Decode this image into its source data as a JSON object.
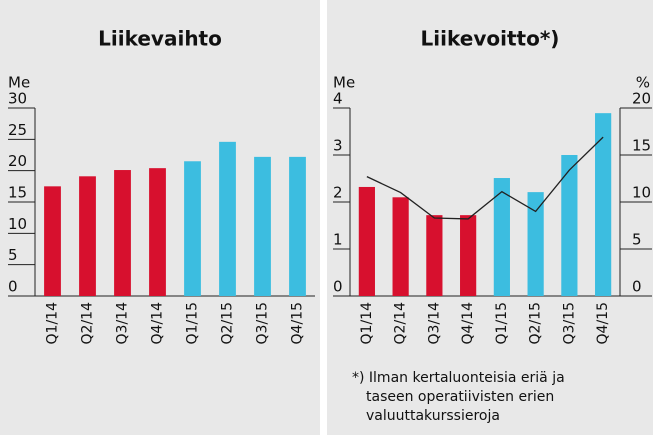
{
  "chart_data": [
    {
      "type": "bar",
      "title": "Liikevaihto",
      "y_label": "Me",
      "categories": [
        "Q1/14",
        "Q2/14",
        "Q3/14",
        "Q4/14",
        "Q1/15",
        "Q2/15",
        "Q3/15",
        "Q4/15"
      ],
      "series": [
        {
          "values": [
            17.5,
            19.1,
            20.1,
            20.4,
            21.5,
            24.6,
            22.2,
            22.2
          ],
          "colors": [
            "#d7102e",
            "#d7102e",
            "#d7102e",
            "#d7102e",
            "#3cbde0",
            "#3cbde0",
            "#3cbde0",
            "#3cbde0"
          ]
        }
      ],
      "ylim": [
        0,
        30
      ],
      "yticks": [
        0,
        5,
        10,
        15,
        20,
        25,
        30
      ],
      "grid": false
    },
    {
      "type": "bar",
      "title": "Liikevoitto*)",
      "y_label": "Me",
      "y2_label": "%",
      "categories": [
        "Q1/14",
        "Q2/14",
        "Q3/14",
        "Q4/14",
        "Q1/15",
        "Q2/15",
        "Q3/15",
        "Q4/15"
      ],
      "series": [
        {
          "values": [
            2.32,
            2.1,
            1.72,
            1.72,
            2.51,
            2.21,
            3.0,
            3.89
          ],
          "colors": [
            "#d7102e",
            "#d7102e",
            "#d7102e",
            "#d7102e",
            "#3cbde0",
            "#3cbde0",
            "#3cbde0",
            "#3cbde0"
          ]
        },
        {
          "type": "line",
          "axis": "y2",
          "color": "#222222",
          "values": [
            12.7,
            11.0,
            8.3,
            8.2,
            11.1,
            9.0,
            13.4,
            16.9
          ]
        }
      ],
      "ylim": [
        0,
        4
      ],
      "yticks": [
        0,
        1,
        2,
        3,
        4
      ],
      "y2lim": [
        0,
        20
      ],
      "y2ticks": [
        0,
        5,
        10,
        15,
        20
      ],
      "grid": false,
      "footnote": [
        "*) Ilman kertaluonteisia eriä ja",
        "taseen operatiivisten erien",
        "valuuttakurssieroja"
      ]
    }
  ]
}
